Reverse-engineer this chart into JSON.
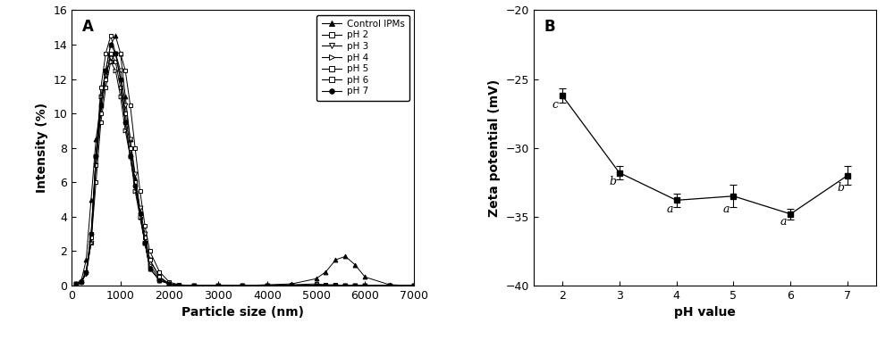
{
  "panel_A_label": "A",
  "panel_B_label": "B",
  "xlabel_A": "Particle size (nm)",
  "ylabel_A": "Intensity (%)",
  "xlabel_B": "pH value",
  "ylabel_B": "Zeta potential (mV)",
  "xlim_A": [
    0,
    7000
  ],
  "ylim_A": [
    0,
    16
  ],
  "xlim_B": [
    1.5,
    7.5
  ],
  "ylim_B": [
    -40,
    -20
  ],
  "xticks_A": [
    0,
    1000,
    2000,
    3000,
    4000,
    5000,
    6000,
    7000
  ],
  "yticks_A": [
    0,
    2,
    4,
    6,
    8,
    10,
    12,
    14,
    16
  ],
  "xticks_B": [
    2,
    3,
    4,
    5,
    6,
    7
  ],
  "yticks_B": [
    -40,
    -35,
    -30,
    -25,
    -20
  ],
  "legend_labels": [
    "Control IPMs",
    "pH 2",
    "pH 3",
    "pH 4",
    "pH 5",
    "pH 6",
    "pH 7"
  ],
  "marker_styles": [
    "^",
    "s",
    "v",
    "^",
    "s",
    "s",
    "o"
  ],
  "marker_filled": [
    true,
    false,
    false,
    false,
    false,
    false,
    true
  ],
  "control_x": [
    100,
    200,
    300,
    400,
    500,
    600,
    700,
    800,
    900,
    1000,
    1100,
    1200,
    1300,
    1400,
    1500,
    1600,
    1800,
    2000,
    2200,
    2500,
    3000,
    3500,
    4000,
    4500,
    5000,
    5200,
    5400,
    5600,
    5800,
    6000,
    6500,
    7000
  ],
  "control_y": [
    0.1,
    0.3,
    1.5,
    5.0,
    8.5,
    10.5,
    12.5,
    14.0,
    14.5,
    13.5,
    11.0,
    8.5,
    6.2,
    4.0,
    2.5,
    1.0,
    0.3,
    0.1,
    0.0,
    0.0,
    0.0,
    0.0,
    0.05,
    0.1,
    0.4,
    0.8,
    1.5,
    1.7,
    1.2,
    0.5,
    0.05,
    0.0
  ],
  "pH2_x": [
    100,
    200,
    300,
    400,
    500,
    600,
    700,
    800,
    900,
    1000,
    1100,
    1200,
    1300,
    1400,
    1500,
    1600,
    1800,
    2000,
    2200,
    2500,
    3000,
    3500,
    4000,
    4500,
    5000,
    5200,
    5400,
    5600,
    5800,
    6000,
    6500,
    7000
  ],
  "pH2_y": [
    0.1,
    0.2,
    0.8,
    2.5,
    6.0,
    9.5,
    11.5,
    13.0,
    13.5,
    13.5,
    12.5,
    10.5,
    8.0,
    5.5,
    3.5,
    2.0,
    0.8,
    0.2,
    0.05,
    0.0,
    0.0,
    0.0,
    0.0,
    0.05,
    0.1,
    0.05,
    0.05,
    0.0,
    0.0,
    0.0,
    0.0,
    0.0
  ],
  "pH3_x": [
    100,
    200,
    300,
    400,
    500,
    600,
    700,
    800,
    900,
    1000,
    1100,
    1200,
    1300,
    1400,
    1500,
    1600,
    1800,
    2000,
    2200,
    2500,
    3000,
    3500,
    4000,
    4500,
    5000,
    5200,
    5400,
    5600,
    5800,
    6000,
    6500,
    7000
  ],
  "pH3_y": [
    0.1,
    0.2,
    0.7,
    2.5,
    7.0,
    10.5,
    12.2,
    13.2,
    13.5,
    12.5,
    10.5,
    8.5,
    6.5,
    4.5,
    3.0,
    1.5,
    0.5,
    0.1,
    0.0,
    0.0,
    0.0,
    0.0,
    0.0,
    0.0,
    0.0,
    0.0,
    0.0,
    0.0,
    0.0,
    0.0,
    0.0,
    0.0
  ],
  "pH4_x": [
    100,
    200,
    300,
    400,
    500,
    600,
    700,
    800,
    900,
    1000,
    1100,
    1200,
    1300,
    1400,
    1500,
    1600,
    1800,
    2000,
    2200,
    2500,
    3000,
    3500,
    4000,
    4500,
    5000,
    5200,
    5400,
    5600,
    5800,
    6000,
    6500,
    7000
  ],
  "pH4_y": [
    0.1,
    0.2,
    0.7,
    2.5,
    7.5,
    11.0,
    12.5,
    13.0,
    12.5,
    11.0,
    9.0,
    7.5,
    5.5,
    4.0,
    2.5,
    1.2,
    0.4,
    0.1,
    0.0,
    0.0,
    0.0,
    0.0,
    0.0,
    0.0,
    0.0,
    0.0,
    0.0,
    0.0,
    0.0,
    0.0,
    0.0,
    0.0
  ],
  "pH5_x": [
    100,
    200,
    300,
    400,
    500,
    600,
    700,
    800,
    900,
    1000,
    1100,
    1200,
    1300,
    1400,
    1500,
    1600,
    1800,
    2000,
    2200,
    2500,
    3000,
    3500,
    4000,
    4500,
    5000,
    5200,
    5400,
    5600,
    5800,
    6000,
    6500,
    7000
  ],
  "pH5_y": [
    0.1,
    0.2,
    0.8,
    2.8,
    7.0,
    10.0,
    12.0,
    13.5,
    13.0,
    11.5,
    9.5,
    7.5,
    5.8,
    4.2,
    2.8,
    1.5,
    0.5,
    0.1,
    0.0,
    0.0,
    0.0,
    0.0,
    0.0,
    0.0,
    0.0,
    0.0,
    0.0,
    0.0,
    0.0,
    0.0,
    0.0,
    0.0
  ],
  "pH6_x": [
    100,
    200,
    300,
    400,
    500,
    600,
    700,
    800,
    900,
    1000,
    1100,
    1200,
    1300,
    1400,
    1500,
    1600,
    1800,
    2000,
    2200,
    2500,
    3000,
    3500,
    4000,
    4500,
    5000,
    5200,
    5400,
    5600,
    5800,
    6000,
    6500,
    7000
  ],
  "pH6_y": [
    0.1,
    0.2,
    0.8,
    3.0,
    7.5,
    11.5,
    13.5,
    14.5,
    13.5,
    12.0,
    10.0,
    8.0,
    6.0,
    4.2,
    2.5,
    1.0,
    0.3,
    0.1,
    0.0,
    0.0,
    0.0,
    0.0,
    0.0,
    0.0,
    0.0,
    0.0,
    0.0,
    0.0,
    0.0,
    0.0,
    0.0,
    0.0
  ],
  "pH7_x": [
    100,
    200,
    300,
    400,
    500,
    600,
    700,
    800,
    900,
    1000,
    1100,
    1200,
    1300,
    1400,
    1500,
    1600,
    1800,
    2000,
    2200,
    2500,
    3000,
    3500,
    4000,
    4500,
    5000,
    5200,
    5400,
    5600,
    5800,
    6000,
    6500,
    7000
  ],
  "pH7_y": [
    0.1,
    0.2,
    0.8,
    3.0,
    7.5,
    10.5,
    12.5,
    14.0,
    13.5,
    12.0,
    9.5,
    7.5,
    5.8,
    4.2,
    2.5,
    1.0,
    0.3,
    0.1,
    0.0,
    0.0,
    0.0,
    0.0,
    0.0,
    0.0,
    0.0,
    0.0,
    0.0,
    0.0,
    0.0,
    0.0,
    0.0,
    0.0
  ],
  "pH_values": [
    2,
    3,
    4,
    5,
    6,
    7
  ],
  "zeta_mean": [
    -26.2,
    -31.8,
    -33.8,
    -33.5,
    -34.8,
    -32.0
  ],
  "zeta_err": [
    0.5,
    0.5,
    0.5,
    0.8,
    0.4,
    0.7
  ],
  "zeta_letters": [
    "c",
    "b",
    "a",
    "a",
    "a",
    "b"
  ],
  "zeta_letter_above": [
    true,
    true,
    true,
    true,
    true,
    true
  ],
  "bg_color": "#ffffff"
}
